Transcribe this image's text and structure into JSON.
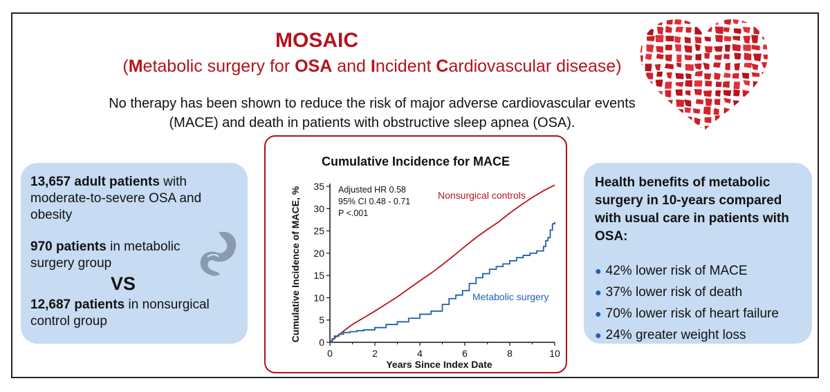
{
  "header": {
    "title": "MOSAIC",
    "subtitle_parts": [
      {
        "text": "(",
        "bold": false
      },
      {
        "text": "M",
        "bold": true
      },
      {
        "text": "etabolic surgery for ",
        "bold": false
      },
      {
        "text": "OSA",
        "bold": true
      },
      {
        "text": " and ",
        "bold": false
      },
      {
        "text": "I",
        "bold": true
      },
      {
        "text": "ncident ",
        "bold": false
      },
      {
        "text": "C",
        "bold": true
      },
      {
        "text": "ardiovascular disease)",
        "bold": false
      }
    ],
    "intro_line1": "No therapy has been shown to reduce the risk of major adverse cardiovascular events",
    "intro_line2": "(MACE) and death in patients with obstructive sleep apnea (OSA)."
  },
  "left_panel": {
    "p1_bold": "13,657 adult patients",
    "p1_rest": " with moderate-to-severe OSA and obesity",
    "p2_bold": "970 patients",
    "p2_rest": " in metabolic surgery group",
    "vs": "VS",
    "p3_bold": "12,687 patients",
    "p3_rest": " in nonsurgical control group"
  },
  "right_panel": {
    "heading": "Health benefits of metabolic surgery in 10-years compared with usual care in patients with OSA:",
    "bullets": [
      "42% lower risk of MACE",
      "37% lower risk of death",
      "70% lower risk of heart failure",
      "24% greater weight loss"
    ]
  },
  "colors": {
    "accent_red": "#b3141c",
    "surgery_blue": "#1f5fae",
    "panel_blue": "#c7dcf3"
  },
  "chart_data": {
    "type": "line",
    "title": "Cumulative Incidence for MACE",
    "xlabel": "Years Since Index Date",
    "ylabel": "Cumulative Incidence of MACE, %",
    "xlim": [
      0,
      10
    ],
    "ylim": [
      0,
      35
    ],
    "xticks": [
      0,
      2,
      4,
      6,
      8,
      10
    ],
    "yticks": [
      0,
      5,
      10,
      15,
      20,
      25,
      30,
      35
    ],
    "annotation_lines": [
      "Adjusted HR 0.58",
      "95% CI 0.48 - 0.71",
      "P <.001"
    ],
    "series": [
      {
        "name": "Nonsurgical controls",
        "color": "#b3141c",
        "step": false,
        "x": [
          0,
          0.3,
          0.6,
          1,
          1.5,
          2,
          2.5,
          3,
          3.5,
          4,
          4.5,
          5,
          5.5,
          6,
          6.5,
          7,
          7.5,
          8,
          8.5,
          9,
          9.5,
          10
        ],
        "y": [
          0,
          1.3,
          2.5,
          4,
          5.5,
          7,
          8.6,
          10.2,
          12,
          13.8,
          15.5,
          17.4,
          19.4,
          21.5,
          23.5,
          25.3,
          27,
          29,
          30.8,
          32.5,
          34,
          35.3
        ]
      },
      {
        "name": "Metabolic surgery",
        "color": "#1f5fae",
        "step": true,
        "x": [
          0,
          0.1,
          0.2,
          0.4,
          0.6,
          0.9,
          1.2,
          1.5,
          2,
          2.5,
          3,
          3.5,
          4,
          4.5,
          5,
          5.3,
          5.6,
          5.9,
          6.2,
          6.5,
          6.8,
          7.1,
          7.4,
          7.7,
          8,
          8.3,
          8.6,
          8.9,
          9.2,
          9.5,
          9.6,
          9.7,
          9.8,
          9.9,
          10
        ],
        "y": [
          0,
          0.8,
          1.4,
          1.8,
          2.2,
          2.4,
          2.6,
          2.8,
          3.3,
          4,
          4.6,
          5.4,
          6.3,
          7,
          8.5,
          9.8,
          10.6,
          11.6,
          13.2,
          14.5,
          15.4,
          16.4,
          17,
          17.6,
          18.3,
          19,
          19.5,
          20,
          20.5,
          21.5,
          22.8,
          23.5,
          25.2,
          26.6,
          27
        ]
      }
    ]
  }
}
